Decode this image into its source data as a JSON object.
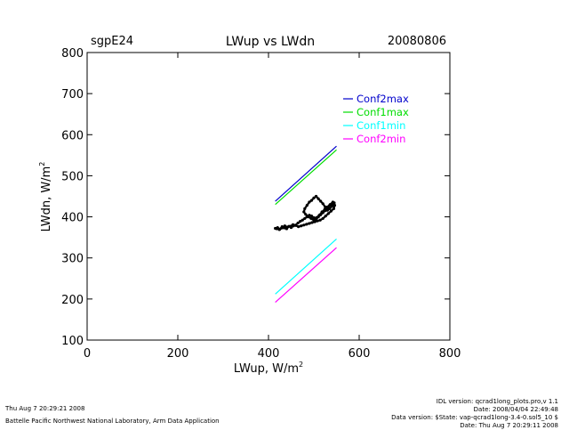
{
  "header": {
    "site": "sgpE24",
    "title": "LWup vs LWdn",
    "date": "20080806"
  },
  "footer": {
    "left_line1": "Thu Aug  7 20:29:21 2008",
    "left_line2": "Battelle Pacific Northwest National Laboratory, Arm Data Application",
    "right_line1": "IDL version: qcrad1long_plots.pro,v 1.1",
    "right_line2": "Date: 2008/04/04 22:49:48",
    "right_line3": "Data version: $State: vap-qcrad1long-3.4-0.sol5_10 $",
    "right_line4": "Date: Thu Aug  7 20:29:11 2008"
  },
  "chart_data": {
    "type": "line",
    "title": "LWup vs LWdn",
    "xlabel": "LWup, W/m",
    "xlabel_sup": "2",
    "ylabel": "LWdn, W/m",
    "ylabel_sup": "2",
    "xlim": [
      0,
      800
    ],
    "ylim": [
      100,
      800
    ],
    "xticks": [
      0,
      200,
      400,
      600,
      800
    ],
    "xtick_labels": [
      "0",
      "200",
      "400",
      "600",
      "800"
    ],
    "yticks": [
      100,
      200,
      300,
      400,
      500,
      600,
      700,
      800
    ],
    "ytick_labels": [
      "100",
      "200",
      "300",
      "400",
      "500",
      "600",
      "700",
      "800"
    ],
    "legend_position": "top-right",
    "series": [
      {
        "name": "Conf2max",
        "color": "#0000cc",
        "x": [
          415,
          550
        ],
        "y": [
          438,
          572
        ]
      },
      {
        "name": "Conf1max",
        "color": "#00dd00",
        "x": [
          415,
          550
        ],
        "y": [
          430,
          563
        ]
      },
      {
        "name": "Conf1min",
        "color": "#00ffff",
        "x": [
          415,
          550
        ],
        "y": [
          212,
          346
        ]
      },
      {
        "name": "Conf2min",
        "color": "#ff00ff",
        "x": [
          415,
          550
        ],
        "y": [
          192,
          325
        ]
      }
    ],
    "scatter": {
      "color": "#000000",
      "x": [
        415,
        420,
        425,
        430,
        435,
        440,
        445,
        450,
        455,
        460,
        465,
        470,
        475,
        480,
        485,
        490,
        495,
        500,
        505,
        510,
        515,
        520,
        525,
        530,
        535,
        540,
        545,
        540,
        535,
        530,
        525,
        520,
        515,
        510,
        505,
        500,
        495,
        490,
        485,
        480,
        478,
        482,
        488,
        494,
        500,
        506,
        512,
        518,
        524,
        530,
        536,
        542,
        546,
        544,
        538,
        532,
        526,
        520,
        514,
        508,
        502,
        496,
        490,
        484,
        478,
        472,
        466,
        460,
        454,
        448,
        442,
        436,
        430,
        424,
        418
      ],
      "y": [
        372,
        374,
        370,
        376,
        373,
        371,
        377,
        374,
        378,
        380,
        385,
        389,
        392,
        396,
        400,
        404,
        402,
        398,
        394,
        400,
        405,
        410,
        415,
        420,
        428,
        432,
        434,
        426,
        420,
        416,
        424,
        432,
        438,
        444,
        450,
        446,
        440,
        436,
        428,
        420,
        412,
        406,
        400,
        396,
        392,
        398,
        404,
        412,
        418,
        424,
        430,
        436,
        428,
        420,
        414,
        408,
        402,
        396,
        392,
        390,
        388,
        386,
        384,
        382,
        380,
        378,
        376,
        379,
        381,
        377,
        375,
        378,
        373,
        369,
        371
      ]
    }
  }
}
